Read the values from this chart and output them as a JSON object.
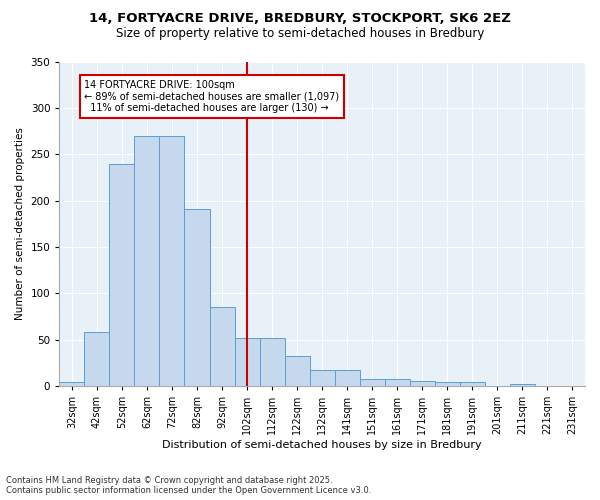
{
  "title_line1": "14, FORTYACRE DRIVE, BREDBURY, STOCKPORT, SK6 2EZ",
  "title_line2": "Size of property relative to semi-detached houses in Bredbury",
  "xlabel": "Distribution of semi-detached houses by size in Bredbury",
  "ylabel": "Number of semi-detached properties",
  "categories": [
    "32sqm",
    "42sqm",
    "52sqm",
    "62sqm",
    "72sqm",
    "82sqm",
    "92sqm",
    "102sqm",
    "112sqm",
    "122sqm",
    "132sqm",
    "141sqm",
    "151sqm",
    "161sqm",
    "171sqm",
    "181sqm",
    "191sqm",
    "201sqm",
    "211sqm",
    "221sqm",
    "231sqm"
  ],
  "values": [
    4,
    58,
    239,
    270,
    270,
    191,
    85,
    52,
    52,
    32,
    17,
    17,
    8,
    8,
    5,
    4,
    4,
    0,
    2,
    0,
    0
  ],
  "bar_color": "#c5d8ed",
  "bar_edge_color": "#5a9fd4",
  "vline_color": "#cc0000",
  "annotation_text_line1": "14 FORTYACRE DRIVE: 100sqm",
  "annotation_text_line2": "← 89% of semi-detached houses are smaller (1,097)",
  "annotation_text_line3": "  11% of semi-detached houses are larger (130) →",
  "annotation_box_color": "#cc0000",
  "ylim": [
    0,
    350
  ],
  "yticks": [
    0,
    50,
    100,
    150,
    200,
    250,
    300,
    350
  ],
  "background_color": "#e8f0f8",
  "footer_line1": "Contains HM Land Registry data © Crown copyright and database right 2025.",
  "footer_line2": "Contains public sector information licensed under the Open Government Licence v3.0.",
  "vline_x_index": 7
}
